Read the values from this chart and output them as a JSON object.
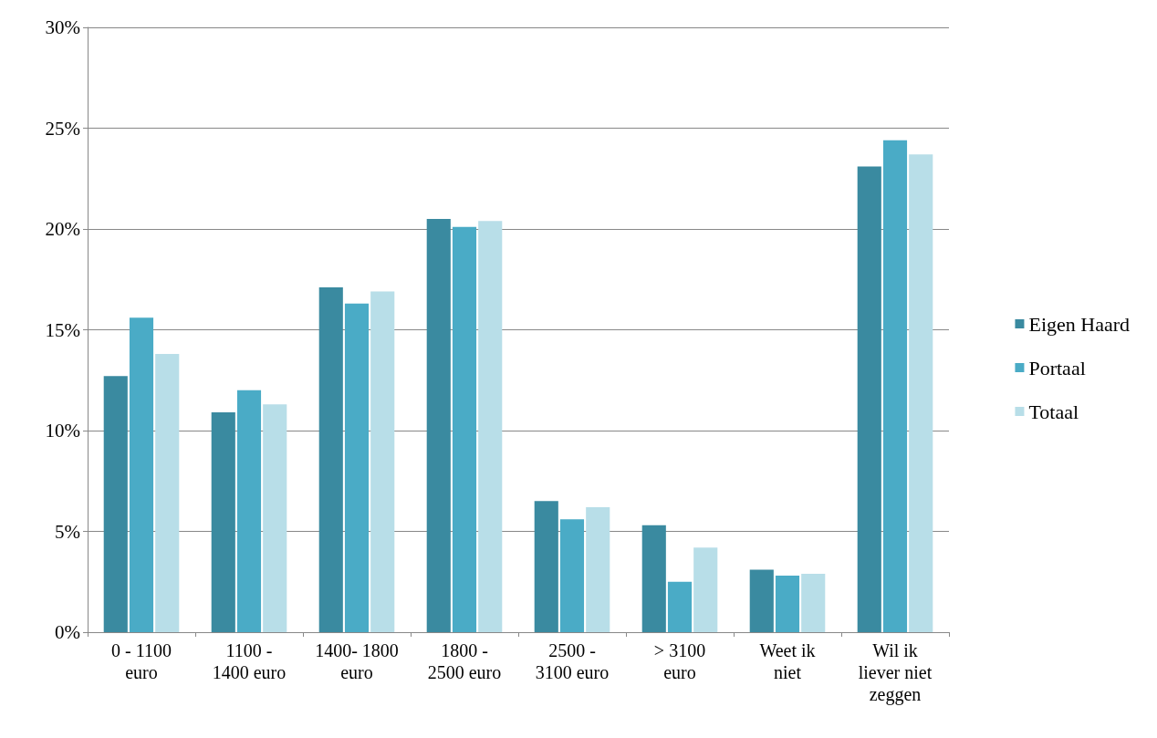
{
  "chart_data": {
    "type": "bar",
    "categories": [
      "0 - 1100\neuro",
      "1100 -\n1400 euro",
      "1400- 1800\neuro",
      "1800 -\n2500 euro",
      "2500 -\n3100 euro",
      "> 3100\neuro",
      "Weet ik\nniet",
      "Wil ik\nliever niet\nzeggen"
    ],
    "series": [
      {
        "name": "Eigen Haard",
        "color": "#3a8aa0",
        "values": [
          12.7,
          10.9,
          17.1,
          20.5,
          6.5,
          5.3,
          3.1,
          23.1
        ]
      },
      {
        "name": "Portaal",
        "color": "#4aabc6",
        "values": [
          15.6,
          12.0,
          16.3,
          20.1,
          5.6,
          2.5,
          2.8,
          24.4
        ]
      },
      {
        "name": "Totaal",
        "color": "#b8dee8",
        "values": [
          13.8,
          11.3,
          16.9,
          20.4,
          6.2,
          4.2,
          2.9,
          23.7
        ]
      }
    ],
    "ylim": [
      0,
      30
    ],
    "yticks": [
      {
        "value": 0,
        "label": "0%"
      },
      {
        "value": 5,
        "label": "5%"
      },
      {
        "value": 10,
        "label": "10%"
      },
      {
        "value": 15,
        "label": "15%"
      },
      {
        "value": 20,
        "label": "20%"
      },
      {
        "value": 25,
        "label": "25%"
      },
      {
        "value": 30,
        "label": "30%"
      }
    ],
    "grid": "y",
    "legend": "right"
  }
}
